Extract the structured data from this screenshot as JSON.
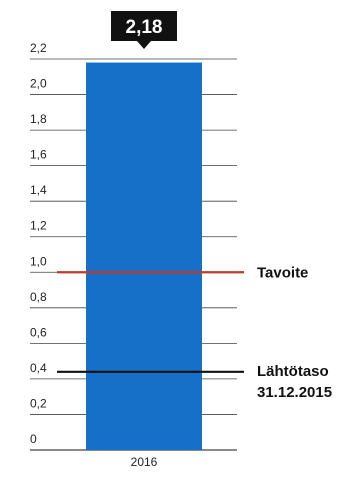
{
  "chart_data": {
    "type": "bar",
    "categories": [
      "2016"
    ],
    "values": [
      2.18
    ],
    "value_label": "2,18",
    "ylim": [
      0,
      2.2
    ],
    "y_ticks": [
      {
        "value": 0,
        "label": "0"
      },
      {
        "value": 0.2,
        "label": "0,2"
      },
      {
        "value": 0.4,
        "label": "0,4"
      },
      {
        "value": 0.6,
        "label": "0,6"
      },
      {
        "value": 0.8,
        "label": "0,8"
      },
      {
        "value": 1.0,
        "label": "1,0"
      },
      {
        "value": 1.2,
        "label": "1,2"
      },
      {
        "value": 1.4,
        "label": "1,4"
      },
      {
        "value": 1.6,
        "label": "1,6"
      },
      {
        "value": 1.8,
        "label": "1,8"
      },
      {
        "value": 2.0,
        "label": "2,0"
      },
      {
        "value": 2.2,
        "label": "2,2"
      }
    ],
    "reference_lines": [
      {
        "value": 1.0,
        "label_lines": [
          "Tavoite"
        ],
        "color": "#c0392b"
      },
      {
        "value": 0.44,
        "label_lines": [
          "Lähtötaso",
          "31.12.2015"
        ],
        "color": "#111111"
      }
    ],
    "grid": true,
    "colors": {
      "bar": "#1670c8",
      "grid": "#444444",
      "callout_bg": "#111111",
      "callout_text": "#ffffff"
    }
  }
}
